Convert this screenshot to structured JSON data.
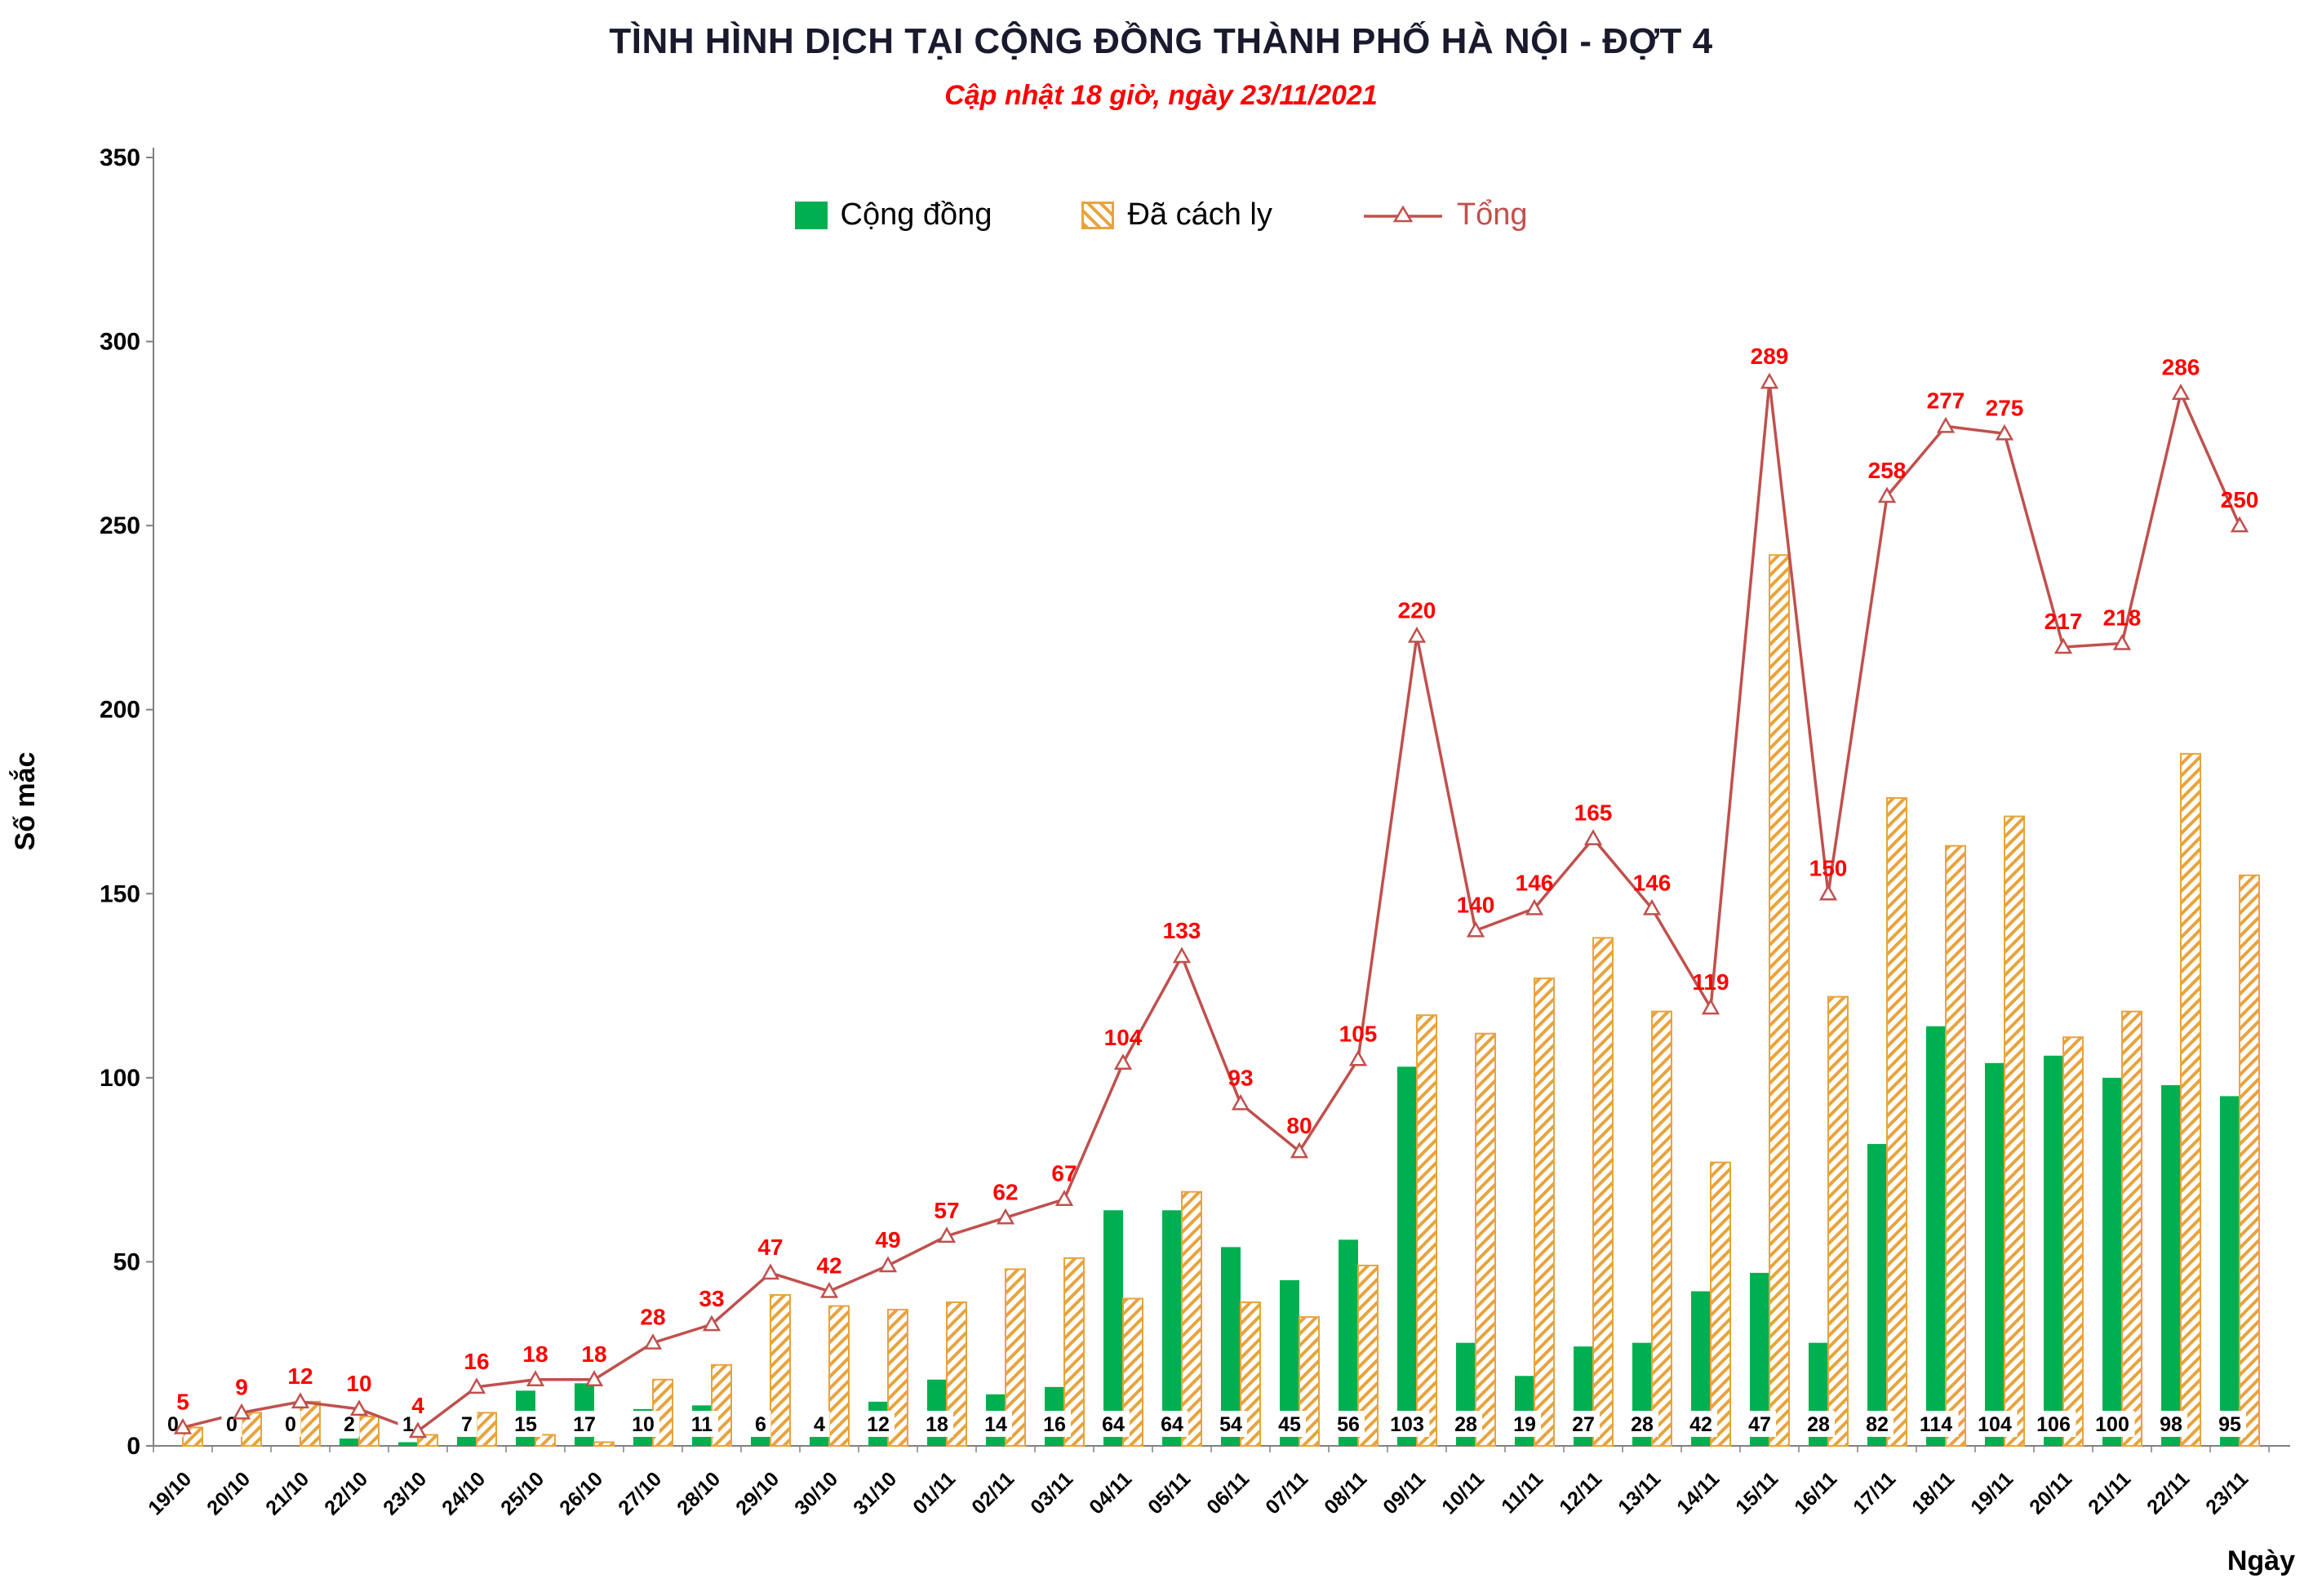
{
  "chart_data": {
    "type": "bar",
    "subtype": "combo-bar-line",
    "title": "TÌNH HÌNH DỊCH TẠI CỘNG ĐỒNG THÀNH PHỐ HÀ NỘI - ĐỢT 4",
    "subtitle": "Cập nhật 18 giờ, ngày 23/11/2021",
    "xlabel": "Ngày",
    "ylabel": "Số mắc",
    "ylim": [
      0,
      350
    ],
    "ytick_step": 50,
    "grid": false,
    "legend_position": "top-center",
    "categories": [
      "19/10",
      "20/10",
      "21/10",
      "22/10",
      "23/10",
      "24/10",
      "25/10",
      "26/10",
      "27/10",
      "28/10",
      "29/10",
      "30/10",
      "31/10",
      "01/11",
      "02/11",
      "03/11",
      "04/11",
      "05/11",
      "06/11",
      "07/11",
      "08/11",
      "09/11",
      "10/11",
      "11/11",
      "12/11",
      "13/11",
      "14/11",
      "15/11",
      "16/11",
      "17/11",
      "18/11",
      "19/11",
      "20/11",
      "21/11",
      "22/11",
      "23/11"
    ],
    "series": [
      {
        "name": "Cộng đồng",
        "type": "bar",
        "style": "solid",
        "color": "#00B050",
        "values": [
          0,
          0,
          0,
          2,
          1,
          7,
          15,
          17,
          10,
          11,
          6,
          4,
          12,
          18,
          14,
          16,
          64,
          64,
          54,
          45,
          56,
          103,
          28,
          19,
          27,
          28,
          42,
          47,
          28,
          82,
          114,
          104,
          106,
          100,
          98,
          95
        ]
      },
      {
        "name": "Đã cách ly",
        "type": "bar",
        "style": "hatched",
        "color": "#E8A33D",
        "values": [
          5,
          9,
          12,
          8,
          3,
          9,
          3,
          1,
          18,
          22,
          41,
          38,
          37,
          39,
          48,
          51,
          40,
          69,
          39,
          35,
          49,
          117,
          112,
          127,
          138,
          118,
          77,
          242,
          122,
          176,
          163,
          171,
          111,
          118,
          188,
          155
        ]
      },
      {
        "name": "Tổng",
        "type": "line",
        "marker": "open-triangle",
        "color": "#C0504D",
        "label_color": "#FF0000",
        "values": [
          5,
          9,
          12,
          10,
          4,
          16,
          18,
          18,
          28,
          33,
          47,
          42,
          49,
          57,
          62,
          67,
          104,
          133,
          93,
          80,
          105,
          220,
          140,
          146,
          165,
          146,
          119,
          289,
          150,
          258,
          277,
          275,
          217,
          218,
          286,
          250
        ]
      }
    ],
    "colors": {
      "axis": "#808080",
      "text": "#000000",
      "title": "#1A1A2E",
      "subtitle": "#FF0000",
      "background": "#FFFFFF"
    }
  }
}
